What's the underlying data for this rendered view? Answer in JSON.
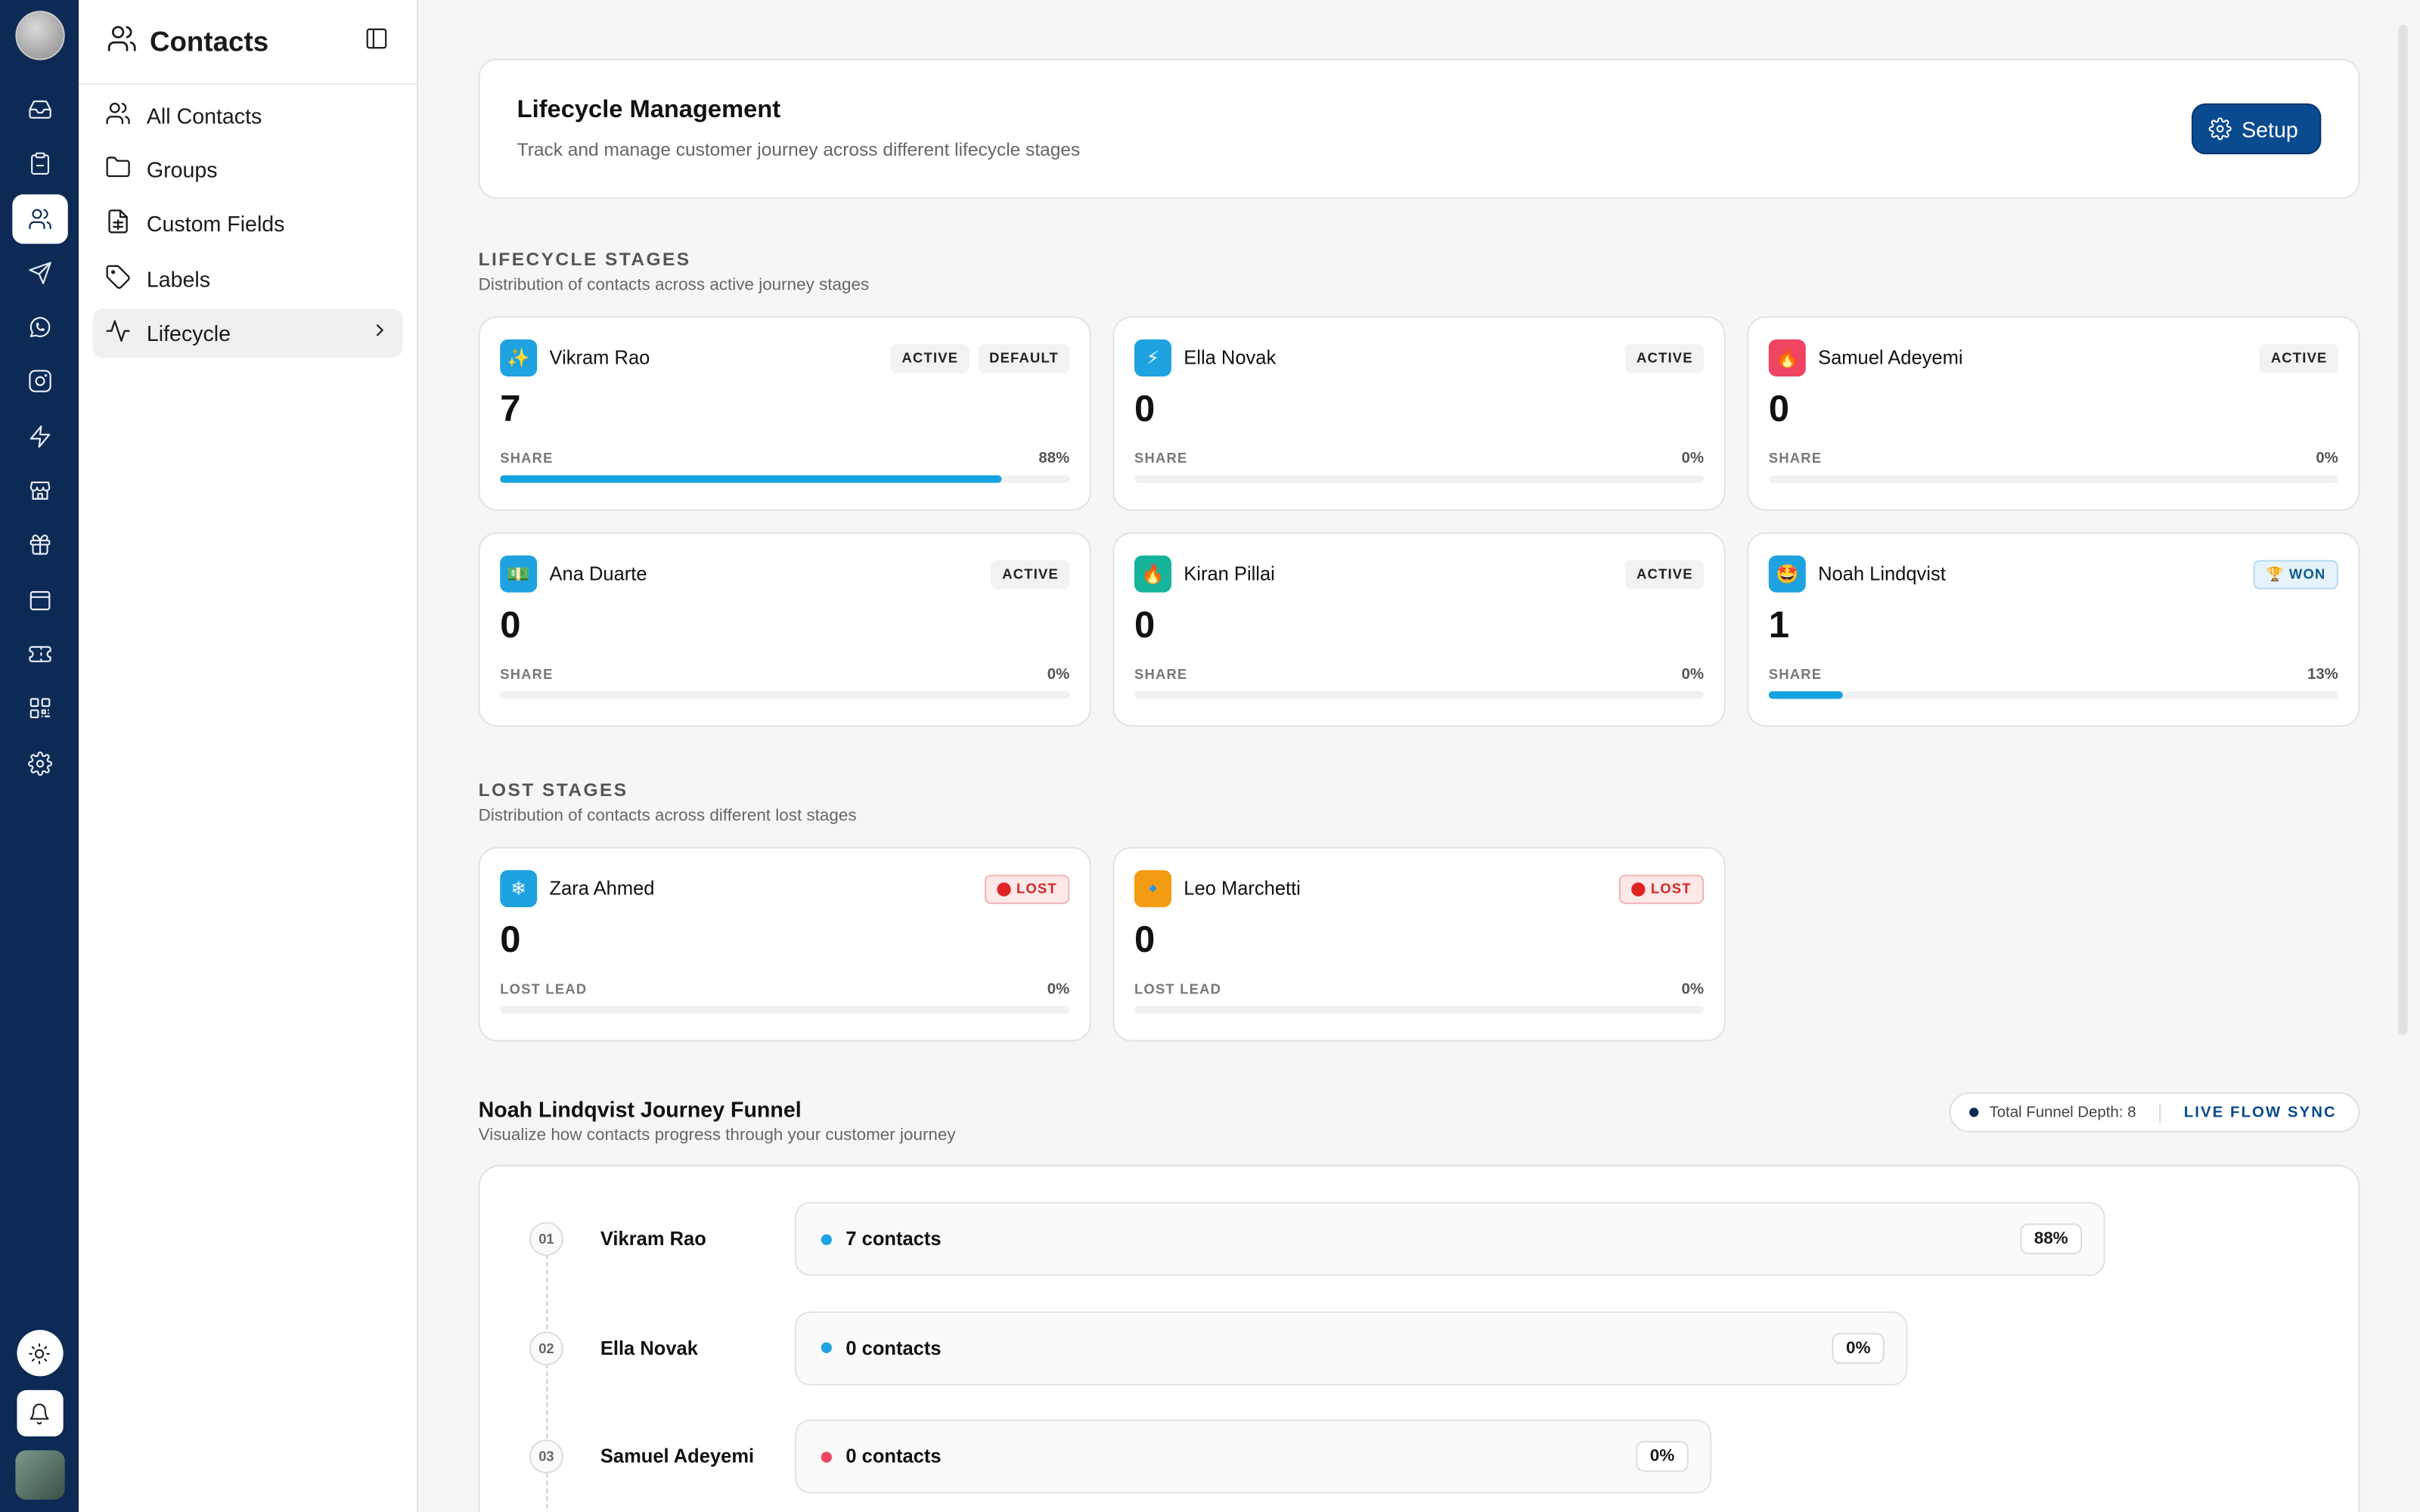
{
  "sidebar": {
    "title": "Contacts",
    "items": [
      {
        "label": "All Contacts",
        "icon": "users-icon"
      },
      {
        "label": "Groups",
        "icon": "folder-icon"
      },
      {
        "label": "Custom Fields",
        "icon": "file-spreadsheet-icon"
      },
      {
        "label": "Labels",
        "icon": "tag-icon"
      },
      {
        "label": "Lifecycle",
        "icon": "activity-icon",
        "active": true
      }
    ]
  },
  "header": {
    "title": "Lifecycle Management",
    "subtitle": "Track and manage customer journey across different lifecycle stages",
    "setup_label": "Setup"
  },
  "lifecycle_section": {
    "title": "LIFECYCLE STAGES",
    "subtitle": "Distribution of contacts across active journey stages"
  },
  "lifecycle_stages": [
    {
      "name": "Vikram Rao",
      "emoji": "✨",
      "color": "#1fa3e0",
      "badges": [
        "ACTIVE",
        "DEFAULT"
      ],
      "count": "7",
      "meta_label": "SHARE",
      "percent": "88%",
      "fill": 0.88
    },
    {
      "name": "Ella Novak",
      "emoji": "⚡",
      "color": "#1fa3e0",
      "badges": [
        "ACTIVE"
      ],
      "count": "0",
      "meta_label": "SHARE",
      "percent": "0%",
      "fill": 0
    },
    {
      "name": "Samuel Adeyemi",
      "emoji": "🔥",
      "color": "#ef4462",
      "badges": [
        "ACTIVE"
      ],
      "count": "0",
      "meta_label": "SHARE",
      "percent": "0%",
      "fill": 0
    },
    {
      "name": "Ana Duarte",
      "emoji": "💵",
      "color": "#1fa3e0",
      "badges": [
        "ACTIVE"
      ],
      "count": "0",
      "meta_label": "SHARE",
      "percent": "0%",
      "fill": 0
    },
    {
      "name": "Kiran Pillai",
      "emoji": "🔥",
      "color": "#16b59b",
      "badges": [
        "ACTIVE"
      ],
      "count": "0",
      "meta_label": "SHARE",
      "percent": "0%",
      "fill": 0
    },
    {
      "name": "Noah Lindqvist",
      "emoji": "🤩",
      "color": "#1fa3e0",
      "badges": [
        "🏆 WON"
      ],
      "count": "1",
      "meta_label": "SHARE",
      "percent": "13%",
      "fill": 0.13
    }
  ],
  "lost_section": {
    "title": "LOST STAGES",
    "subtitle": "Distribution of contacts across different lost stages"
  },
  "lost_stages": [
    {
      "name": "Zara Ahmed",
      "emoji": "❄",
      "color": "#1fa3e0",
      "badges": [
        "LOST"
      ],
      "count": "0",
      "meta_label": "LOST LEAD",
      "percent": "0%",
      "fill": 0
    },
    {
      "name": "Leo Marchetti",
      "emoji": "🔹",
      "color": "#f39c12",
      "badges": [
        "LOST"
      ],
      "count": "0",
      "meta_label": "LOST LEAD",
      "percent": "0%",
      "fill": 0
    }
  ],
  "funnel": {
    "title": "Noah Lindqvist Journey Funnel",
    "subtitle": "Visualize how contacts progress through your customer journey",
    "depth_label": "Total Funnel Depth: 8",
    "sync_label": "LIVE FLOW SYNC",
    "rows": [
      {
        "num": "01",
        "name": "Vikram Rao",
        "contacts": "7 contacts",
        "percent": "88%",
        "dot": "#1fa3e0"
      },
      {
        "num": "02",
        "name": "Ella Novak",
        "contacts": "0 contacts",
        "percent": "0%",
        "dot": "#1fa3e0"
      },
      {
        "num": "03",
        "name": "Samuel Adeyemi",
        "contacts": "0 contacts",
        "percent": "0%",
        "dot": "#ef4462"
      }
    ]
  }
}
